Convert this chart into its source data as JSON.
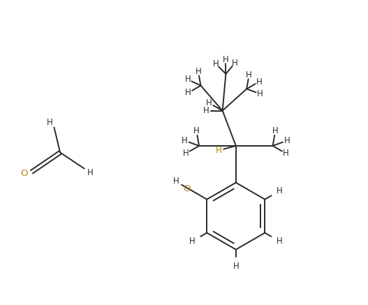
{
  "bg_color": "#ffffff",
  "line_color": "#2a2a2a",
  "H_color": "#2a2a2a",
  "H_brown_color": "#b8860b",
  "O_color": "#b8860b",
  "label_fontsize": 8.5,
  "line_width": 1.4,
  "figsize": [
    5.27,
    4.37
  ],
  "dpi": 100,
  "xlim": [
    0,
    10.5
  ],
  "ylim": [
    0,
    9.0
  ]
}
